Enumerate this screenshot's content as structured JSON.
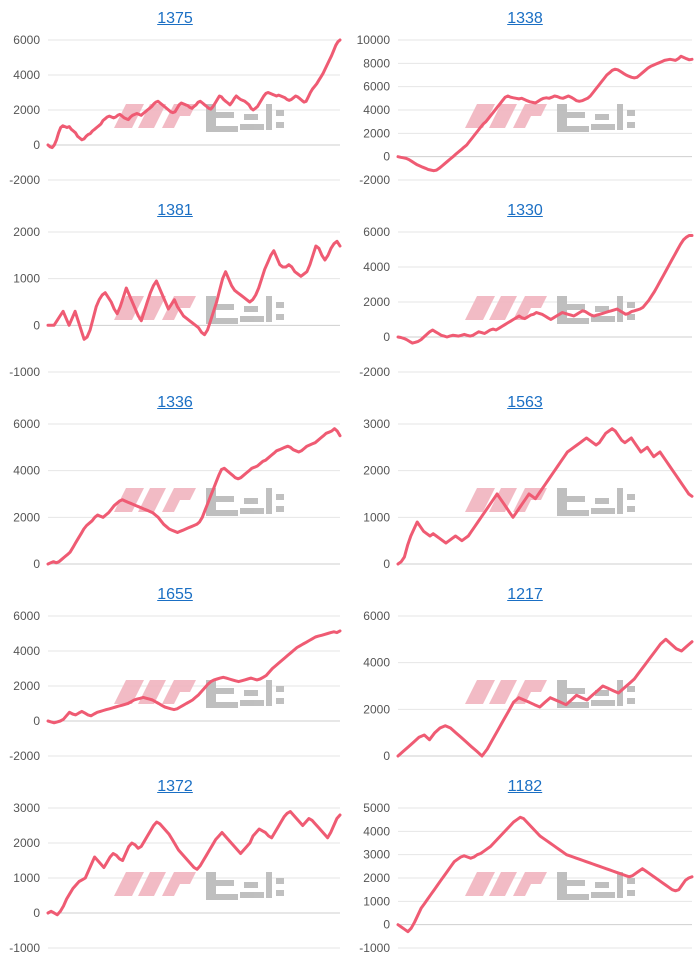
{
  "colors": {
    "series": "#ef5b73",
    "link": "#1a6fc4"
  },
  "watermark": {
    "kind": "logo"
  },
  "chart_data": [
    {
      "type": "line",
      "title": "1375",
      "ylim": [
        -2000,
        6000
      ],
      "yticks": [
        -2000,
        0,
        2000,
        4000,
        6000
      ],
      "values": [
        0,
        -100,
        -150,
        0,
        300,
        700,
        1000,
        1100,
        1050,
        1000,
        1050,
        900,
        800,
        700,
        500,
        400,
        300,
        350,
        500,
        600,
        650,
        800,
        900,
        1000,
        1100,
        1200,
        1400,
        1500,
        1600,
        1650,
        1600,
        1550,
        1600,
        1700,
        1750,
        1650,
        1550,
        1500,
        1450,
        1600,
        1700,
        1750,
        1800,
        1750,
        1700,
        1800,
        1900,
        2000,
        2100,
        2200,
        2350,
        2450,
        2500,
        2400,
        2300,
        2200,
        2100,
        2000,
        1900,
        1850,
        1900,
        2100,
        2300,
        2400,
        2350,
        2300,
        2250,
        2150,
        2100,
        2200,
        2300,
        2450,
        2500,
        2400,
        2300,
        2200,
        2100,
        2050,
        2200,
        2400,
        2600,
        2800,
        2750,
        2600,
        2500,
        2400,
        2300,
        2450,
        2650,
        2800,
        2700,
        2600,
        2550,
        2500,
        2400,
        2300,
        2100,
        2000,
        2100,
        2200,
        2400,
        2600,
        2800,
        2950,
        3000,
        2950,
        2900,
        2850,
        2800,
        2850,
        2800,
        2750,
        2700,
        2600,
        2550,
        2600,
        2700,
        2800,
        2750,
        2650,
        2550,
        2450,
        2500,
        2750,
        3000,
        3200,
        3350,
        3500,
        3700,
        3900,
        4100,
        4350,
        4600,
        4850,
        5100,
        5400,
        5700,
        5900,
        6000
      ]
    },
    {
      "type": "line",
      "title": "1338",
      "ylim": [
        -2000,
        10000
      ],
      "yticks": [
        -2000,
        0,
        2000,
        4000,
        6000,
        8000,
        10000
      ],
      "values": [
        0,
        -50,
        -100,
        -150,
        -250,
        -400,
        -550,
        -700,
        -800,
        -900,
        -1000,
        -1100,
        -1150,
        -1200,
        -1150,
        -1000,
        -800,
        -600,
        -400,
        -200,
        0,
        200,
        400,
        600,
        800,
        1000,
        1300,
        1600,
        1900,
        2200,
        2500,
        2800,
        3000,
        3300,
        3600,
        3900,
        4200,
        4500,
        4800,
        5100,
        5200,
        5100,
        5050,
        5000,
        4950,
        5000,
        4900,
        4800,
        4700,
        4650,
        4600,
        4750,
        4900,
        5000,
        5050,
        5000,
        5100,
        5200,
        5150,
        5050,
        5000,
        5100,
        5200,
        5100,
        4950,
        4800,
        4750,
        4800,
        4900,
        5000,
        5200,
        5500,
        5800,
        6100,
        6400,
        6700,
        7000,
        7200,
        7400,
        7500,
        7450,
        7300,
        7150,
        7000,
        6900,
        6800,
        6750,
        6800,
        7000,
        7200,
        7400,
        7600,
        7750,
        7850,
        7950,
        8050,
        8150,
        8250,
        8300,
        8350,
        8300,
        8250,
        8400,
        8600,
        8500,
        8400,
        8300,
        8350
      ]
    },
    {
      "type": "line",
      "title": "1381",
      "ylim": [
        -1000,
        2000
      ],
      "yticks": [
        -1000,
        0,
        1000,
        2000
      ],
      "values": [
        0,
        0,
        0,
        100,
        200,
        300,
        150,
        0,
        150,
        300,
        100,
        -100,
        -300,
        -250,
        -100,
        150,
        400,
        550,
        650,
        700,
        600,
        500,
        350,
        250,
        400,
        600,
        800,
        650,
        500,
        350,
        200,
        100,
        300,
        500,
        700,
        850,
        950,
        800,
        650,
        500,
        350,
        450,
        550,
        400,
        300,
        200,
        150,
        100,
        50,
        0,
        -50,
        -150,
        -200,
        -100,
        100,
        300,
        500,
        750,
        1000,
        1150,
        1000,
        850,
        750,
        700,
        650,
        600,
        550,
        500,
        550,
        650,
        800,
        1000,
        1200,
        1350,
        1500,
        1600,
        1450,
        1300,
        1250,
        1250,
        1300,
        1250,
        1150,
        1100,
        1050,
        1100,
        1150,
        1300,
        1500,
        1700,
        1650,
        1500,
        1400,
        1500,
        1650,
        1750,
        1800,
        1700
      ]
    },
    {
      "type": "line",
      "title": "1330",
      "ylim": [
        -2000,
        6000
      ],
      "yticks": [
        -2000,
        0,
        2000,
        4000,
        6000
      ],
      "values": [
        0,
        -30,
        -80,
        -150,
        -250,
        -350,
        -300,
        -250,
        -150,
        0,
        150,
        300,
        400,
        300,
        200,
        100,
        50,
        0,
        50,
        100,
        80,
        50,
        100,
        150,
        100,
        50,
        100,
        200,
        300,
        250,
        200,
        300,
        400,
        450,
        400,
        500,
        600,
        700,
        800,
        900,
        1000,
        1100,
        1200,
        1100,
        1050,
        1150,
        1250,
        1300,
        1400,
        1350,
        1300,
        1200,
        1100,
        1000,
        1100,
        1200,
        1300,
        1400,
        1350,
        1300,
        1250,
        1200,
        1300,
        1400,
        1500,
        1450,
        1350,
        1250,
        1200,
        1250,
        1300,
        1350,
        1400,
        1450,
        1500,
        1550,
        1600,
        1500,
        1400,
        1300,
        1350,
        1450,
        1500,
        1550,
        1600,
        1700,
        1900,
        2100,
        2350,
        2600,
        2900,
        3200,
        3500,
        3800,
        4100,
        4400,
        4700,
        5000,
        5300,
        5550,
        5700,
        5800,
        5800
      ]
    },
    {
      "type": "line",
      "title": "1336",
      "ylim": [
        0,
        6000
      ],
      "yticks": [
        0,
        2000,
        4000,
        6000
      ],
      "values": [
        0,
        50,
        100,
        50,
        100,
        200,
        300,
        400,
        500,
        700,
        900,
        1100,
        1300,
        1500,
        1650,
        1750,
        1850,
        2000,
        2100,
        2050,
        2000,
        2100,
        2200,
        2350,
        2500,
        2600,
        2700,
        2750,
        2700,
        2650,
        2600,
        2550,
        2500,
        2450,
        2400,
        2350,
        2300,
        2250,
        2200,
        2100,
        2000,
        1850,
        1700,
        1600,
        1500,
        1450,
        1400,
        1350,
        1400,
        1450,
        1500,
        1550,
        1600,
        1650,
        1700,
        1800,
        2000,
        2300,
        2600,
        2900,
        3200,
        3500,
        3800,
        4050,
        4100,
        4000,
        3900,
        3800,
        3700,
        3650,
        3700,
        3800,
        3900,
        4000,
        4100,
        4150,
        4200,
        4300,
        4400,
        4450,
        4550,
        4650,
        4750,
        4850,
        4900,
        4950,
        5000,
        5050,
        5000,
        4900,
        4850,
        4800,
        4850,
        4950,
        5050,
        5100,
        5150,
        5200,
        5300,
        5400,
        5500,
        5600,
        5650,
        5700,
        5800,
        5700,
        5500
      ]
    },
    {
      "type": "line",
      "title": "1563",
      "ylim": [
        0,
        3000
      ],
      "yticks": [
        0,
        1000,
        2000,
        3000
      ],
      "values": [
        0,
        50,
        150,
        400,
        600,
        750,
        900,
        800,
        700,
        650,
        600,
        650,
        600,
        550,
        500,
        450,
        500,
        550,
        600,
        550,
        500,
        550,
        600,
        700,
        800,
        900,
        1000,
        1100,
        1200,
        1300,
        1400,
        1500,
        1400,
        1300,
        1200,
        1100,
        1000,
        1100,
        1200,
        1300,
        1400,
        1500,
        1450,
        1400,
        1500,
        1600,
        1700,
        1800,
        1900,
        2000,
        2100,
        2200,
        2300,
        2400,
        2450,
        2500,
        2550,
        2600,
        2650,
        2700,
        2650,
        2600,
        2550,
        2600,
        2700,
        2800,
        2850,
        2900,
        2850,
        2750,
        2650,
        2600,
        2650,
        2700,
        2600,
        2500,
        2400,
        2450,
        2500,
        2400,
        2300,
        2350,
        2400,
        2300,
        2200,
        2100,
        2000,
        1900,
        1800,
        1700,
        1600,
        1500,
        1450
      ]
    },
    {
      "type": "line",
      "title": "1655",
      "ylim": [
        -2000,
        6000
      ],
      "yticks": [
        -2000,
        0,
        2000,
        4000,
        6000
      ],
      "values": [
        0,
        -50,
        -100,
        -50,
        0,
        100,
        300,
        500,
        400,
        350,
        450,
        550,
        450,
        350,
        300,
        400,
        500,
        550,
        600,
        650,
        700,
        750,
        800,
        850,
        900,
        950,
        1000,
        1100,
        1200,
        1250,
        1300,
        1350,
        1300,
        1250,
        1200,
        1100,
        1000,
        900,
        800,
        750,
        700,
        650,
        700,
        800,
        900,
        1000,
        1100,
        1200,
        1350,
        1500,
        1700,
        1900,
        2100,
        2250,
        2350,
        2400,
        2450,
        2500,
        2450,
        2400,
        2350,
        2300,
        2250,
        2300,
        2350,
        2400,
        2450,
        2400,
        2350,
        2400,
        2500,
        2600,
        2800,
        3000,
        3150,
        3300,
        3450,
        3600,
        3750,
        3900,
        4050,
        4200,
        4300,
        4400,
        4500,
        4600,
        4700,
        4800,
        4850,
        4900,
        4950,
        5000,
        5050,
        5100,
        5050,
        5150
      ]
    },
    {
      "type": "line",
      "title": "1217",
      "ylim": [
        0,
        6000
      ],
      "yticks": [
        0,
        2000,
        4000,
        6000
      ],
      "values": [
        0,
        200,
        400,
        600,
        800,
        900,
        700,
        1000,
        1200,
        1300,
        1200,
        1000,
        800,
        600,
        400,
        200,
        0,
        300,
        700,
        1100,
        1500,
        1900,
        2300,
        2500,
        2400,
        2300,
        2200,
        2100,
        2300,
        2500,
        2400,
        2300,
        2200,
        2400,
        2600,
        2500,
        2400,
        2600,
        2800,
        3000,
        2900,
        2800,
        2700,
        2900,
        3100,
        3300,
        3600,
        3900,
        4200,
        4500,
        4800,
        5000,
        4800,
        4600,
        4500,
        4700,
        4900
      ]
    },
    {
      "type": "line",
      "title": "1372",
      "ylim": [
        -1000,
        3000
      ],
      "yticks": [
        -1000,
        0,
        1000,
        2000,
        3000
      ],
      "values": [
        0,
        50,
        0,
        -50,
        50,
        200,
        400,
        550,
        700,
        800,
        900,
        950,
        1000,
        1200,
        1400,
        1600,
        1500,
        1400,
        1300,
        1450,
        1600,
        1700,
        1650,
        1550,
        1500,
        1700,
        1900,
        2000,
        1950,
        1850,
        1900,
        2050,
        2200,
        2350,
        2500,
        2600,
        2550,
        2450,
        2350,
        2250,
        2100,
        1950,
        1800,
        1700,
        1600,
        1500,
        1400,
        1300,
        1250,
        1350,
        1500,
        1650,
        1800,
        1950,
        2100,
        2200,
        2300,
        2200,
        2100,
        2000,
        1900,
        1800,
        1700,
        1800,
        1900,
        2000,
        2200,
        2300,
        2400,
        2350,
        2300,
        2200,
        2150,
        2300,
        2450,
        2600,
        2750,
        2850,
        2900,
        2800,
        2700,
        2600,
        2500,
        2600,
        2700,
        2650,
        2550,
        2450,
        2350,
        2250,
        2150,
        2300,
        2500,
        2700,
        2800
      ]
    },
    {
      "type": "line",
      "title": "1182",
      "ylim": [
        -1000,
        5000
      ],
      "yticks": [
        -1000,
        0,
        1000,
        2000,
        3000,
        4000,
        5000
      ],
      "values": [
        0,
        -100,
        -200,
        -300,
        -150,
        100,
        400,
        700,
        900,
        1100,
        1300,
        1500,
        1700,
        1900,
        2100,
        2300,
        2500,
        2700,
        2800,
        2900,
        2950,
        2900,
        2850,
        2900,
        3000,
        3050,
        3150,
        3250,
        3350,
        3500,
        3650,
        3800,
        3950,
        4100,
        4250,
        4400,
        4500,
        4600,
        4550,
        4400,
        4250,
        4100,
        3950,
        3800,
        3700,
        3600,
        3500,
        3400,
        3300,
        3200,
        3100,
        3000,
        2950,
        2900,
        2850,
        2800,
        2750,
        2700,
        2650,
        2600,
        2550,
        2500,
        2450,
        2400,
        2350,
        2300,
        2250,
        2200,
        2150,
        2100,
        2050,
        2100,
        2200,
        2300,
        2400,
        2300,
        2200,
        2100,
        2000,
        1900,
        1800,
        1700,
        1600,
        1500,
        1450,
        1500,
        1700,
        1900,
        2000,
        2050
      ]
    }
  ]
}
